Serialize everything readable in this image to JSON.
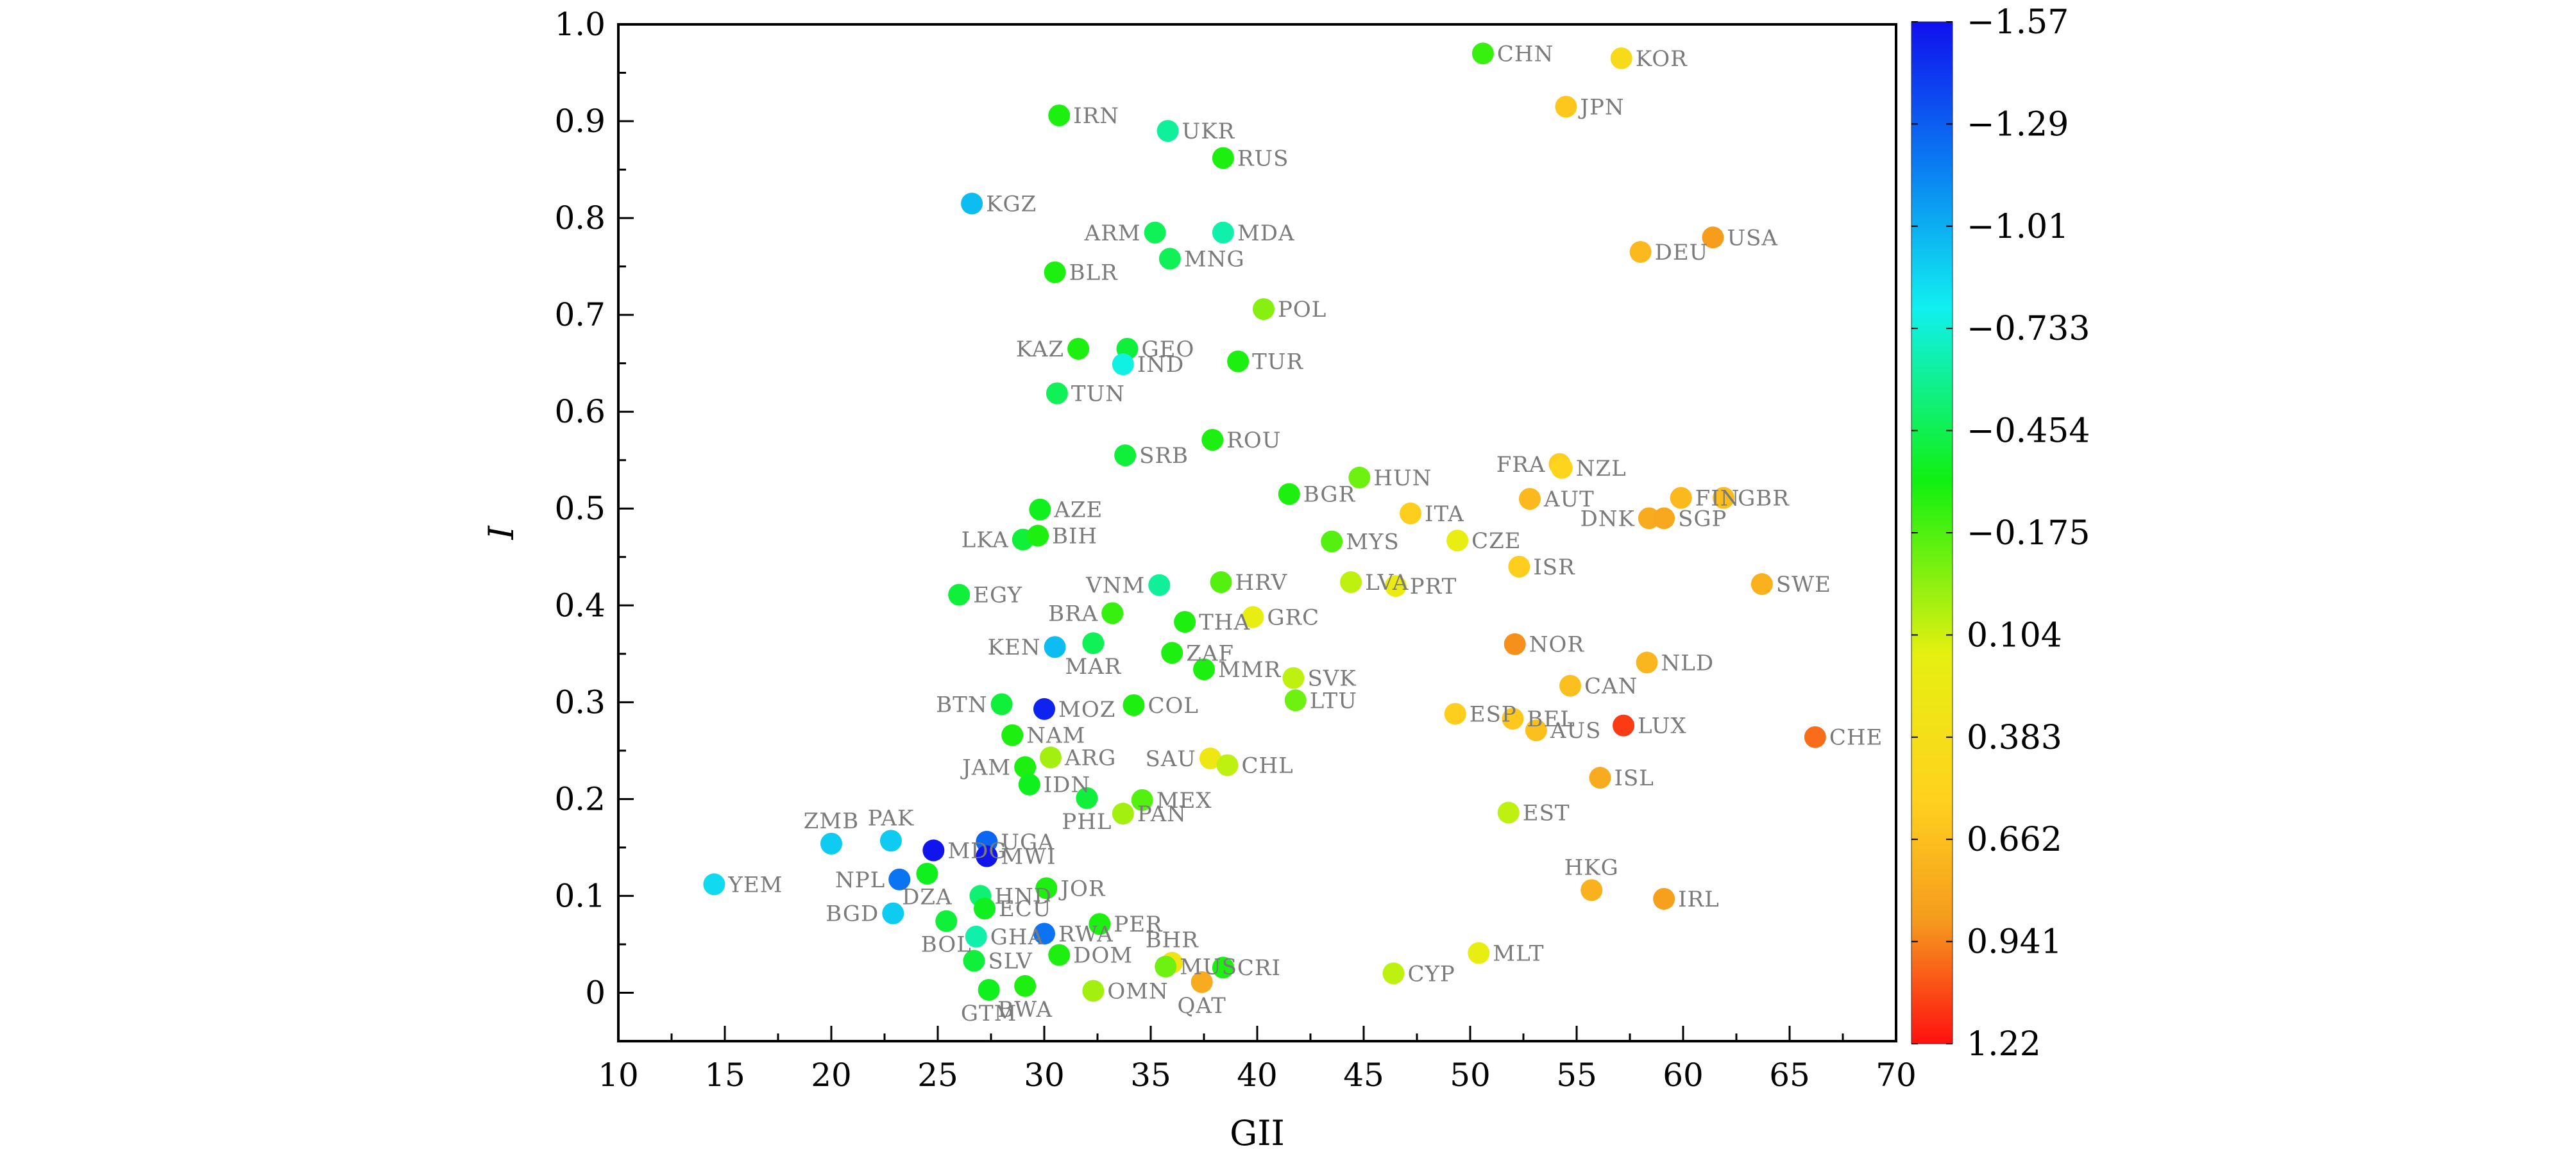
{
  "chart_data": {
    "type": "scatter",
    "title": "",
    "xlabel": "GII",
    "ylabel": "I",
    "xlim": [
      10,
      70
    ],
    "ylim": [
      -0.05,
      1.0
    ],
    "xticks": [
      "10",
      "15",
      "20",
      "25",
      "30",
      "35",
      "40",
      "45",
      "50",
      "55",
      "60",
      "65",
      "70"
    ],
    "yticks": [
      "0",
      "0.1",
      "0.2",
      "0.3",
      "0.4",
      "0.5",
      "0.6",
      "0.7",
      "0.8",
      "0.9",
      "1.0"
    ],
    "colorbar": {
      "range": [
        -1.57,
        1.22
      ],
      "ticks": [
        "−1.57",
        "−1.29",
        "−1.01",
        "−0.733",
        "−0.454",
        "−0.175",
        "0.104",
        "0.383",
        "0.662",
        "0.941",
        "1.22"
      ],
      "colors": [
        "#1010ee",
        "#0a7cf2",
        "#10f0f0",
        "#10f010",
        "#e6f010",
        "#ffd21e",
        "#f59a1e",
        "#ff1010"
      ]
    },
    "points": [
      {
        "label": "CHN",
        "x": 50.6,
        "y": 0.97,
        "c": -0.3,
        "side": "r"
      },
      {
        "label": "KOR",
        "x": 57.1,
        "y": 0.965,
        "c": 0.3,
        "side": "r"
      },
      {
        "label": "JPN",
        "x": 54.5,
        "y": 0.915,
        "c": 0.5,
        "side": "r"
      },
      {
        "label": "IRN",
        "x": 30.7,
        "y": 0.906,
        "c": -0.35,
        "side": "r"
      },
      {
        "label": "UKR",
        "x": 35.8,
        "y": 0.89,
        "c": -0.62,
        "side": "r"
      },
      {
        "label": "RUS",
        "x": 38.4,
        "y": 0.862,
        "c": -0.35,
        "side": "r"
      },
      {
        "label": "KGZ",
        "x": 26.6,
        "y": 0.815,
        "c": -0.95,
        "side": "r"
      },
      {
        "label": "ARM",
        "x": 35.2,
        "y": 0.785,
        "c": -0.5,
        "side": "l"
      },
      {
        "label": "MDA",
        "x": 38.4,
        "y": 0.785,
        "c": -0.65,
        "side": "r"
      },
      {
        "label": "USA",
        "x": 61.4,
        "y": 0.78,
        "c": 0.8,
        "side": "r"
      },
      {
        "label": "DEU",
        "x": 58.0,
        "y": 0.765,
        "c": 0.6,
        "side": "r"
      },
      {
        "label": "MNG",
        "x": 35.9,
        "y": 0.758,
        "c": -0.5,
        "side": "r"
      },
      {
        "label": "BLR",
        "x": 30.5,
        "y": 0.744,
        "c": -0.35,
        "side": "r"
      },
      {
        "label": "POL",
        "x": 40.3,
        "y": 0.706,
        "c": -0.15,
        "side": "r"
      },
      {
        "label": "KAZ",
        "x": 31.6,
        "y": 0.665,
        "c": -0.35,
        "side": "l"
      },
      {
        "label": "GEO",
        "x": 33.9,
        "y": 0.665,
        "c": -0.45,
        "side": "r"
      },
      {
        "label": "IND",
        "x": 33.7,
        "y": 0.649,
        "c": -0.75,
        "side": "r"
      },
      {
        "label": "TUR",
        "x": 39.1,
        "y": 0.652,
        "c": -0.35,
        "side": "r"
      },
      {
        "label": "TUN",
        "x": 30.6,
        "y": 0.619,
        "c": -0.5,
        "side": "r"
      },
      {
        "label": "ROU",
        "x": 37.9,
        "y": 0.571,
        "c": -0.35,
        "side": "r"
      },
      {
        "label": "SRB",
        "x": 33.8,
        "y": 0.555,
        "c": -0.45,
        "side": "r"
      },
      {
        "label": "FRA",
        "x": 54.2,
        "y": 0.546,
        "c": 0.45,
        "side": "l"
      },
      {
        "label": "NZL",
        "x": 54.3,
        "y": 0.542,
        "c": 0.4,
        "side": "r"
      },
      {
        "label": "HUN",
        "x": 44.8,
        "y": 0.532,
        "c": -0.2,
        "side": "r"
      },
      {
        "label": "BGR",
        "x": 41.5,
        "y": 0.515,
        "c": -0.35,
        "side": "r"
      },
      {
        "label": "AUT",
        "x": 52.8,
        "y": 0.51,
        "c": 0.6,
        "side": "r"
      },
      {
        "label": "FIN",
        "x": 59.9,
        "y": 0.511,
        "c": 0.6,
        "side": "r"
      },
      {
        "label": "GBR",
        "x": 61.9,
        "y": 0.511,
        "c": 0.58,
        "side": "r"
      },
      {
        "label": "AZE",
        "x": 29.8,
        "y": 0.499,
        "c": -0.4,
        "side": "r"
      },
      {
        "label": "ITA",
        "x": 47.2,
        "y": 0.495,
        "c": 0.45,
        "side": "r"
      },
      {
        "label": "DNK",
        "x": 58.4,
        "y": 0.49,
        "c": 0.7,
        "side": "l"
      },
      {
        "label": "SGP",
        "x": 59.1,
        "y": 0.49,
        "c": 0.72,
        "side": "r"
      },
      {
        "label": "LKA",
        "x": 29.0,
        "y": 0.468,
        "c": -0.45,
        "side": "l"
      },
      {
        "label": "BIH",
        "x": 29.7,
        "y": 0.472,
        "c": -0.35,
        "side": "r"
      },
      {
        "label": "MYS",
        "x": 43.5,
        "y": 0.466,
        "c": -0.25,
        "side": "r"
      },
      {
        "label": "CZE",
        "x": 49.4,
        "y": 0.467,
        "c": 0.05,
        "side": "r"
      },
      {
        "label": "ISR",
        "x": 52.3,
        "y": 0.44,
        "c": 0.45,
        "side": "r"
      },
      {
        "label": "VNM",
        "x": 35.4,
        "y": 0.421,
        "c": -0.62,
        "side": "l"
      },
      {
        "label": "HRV",
        "x": 38.3,
        "y": 0.424,
        "c": -0.25,
        "side": "r"
      },
      {
        "label": "LVA",
        "x": 44.4,
        "y": 0.424,
        "c": -0.05,
        "side": "r"
      },
      {
        "label": "PRT",
        "x": 46.5,
        "y": 0.42,
        "c": 0.1,
        "side": "r"
      },
      {
        "label": "SWE",
        "x": 63.7,
        "y": 0.422,
        "c": 0.65,
        "side": "r"
      },
      {
        "label": "EGY",
        "x": 26.0,
        "y": 0.411,
        "c": -0.45,
        "side": "r"
      },
      {
        "label": "BRA",
        "x": 33.2,
        "y": 0.392,
        "c": -0.3,
        "side": "l"
      },
      {
        "label": "GRC",
        "x": 39.8,
        "y": 0.388,
        "c": 0.05,
        "side": "r"
      },
      {
        "label": "THA",
        "x": 36.6,
        "y": 0.383,
        "c": -0.35,
        "side": "r"
      },
      {
        "label": "KEN",
        "x": 30.5,
        "y": 0.357,
        "c": -0.95,
        "side": "l"
      },
      {
        "label": "MAR",
        "x": 32.3,
        "y": 0.361,
        "c": -0.5,
        "side": "b"
      },
      {
        "label": "NOR",
        "x": 52.1,
        "y": 0.36,
        "c": 0.85,
        "side": "r"
      },
      {
        "label": "ZAF",
        "x": 36.0,
        "y": 0.351,
        "c": -0.35,
        "side": "r"
      },
      {
        "label": "NLD",
        "x": 58.3,
        "y": 0.341,
        "c": 0.62,
        "side": "r"
      },
      {
        "label": "MMR",
        "x": 37.5,
        "y": 0.334,
        "c": -0.35,
        "side": "r"
      },
      {
        "label": "SVK",
        "x": 41.7,
        "y": 0.325,
        "c": -0.05,
        "side": "r"
      },
      {
        "label": "CAN",
        "x": 54.7,
        "y": 0.317,
        "c": 0.55,
        "side": "r"
      },
      {
        "label": "LTU",
        "x": 41.8,
        "y": 0.302,
        "c": -0.2,
        "side": "r"
      },
      {
        "label": "BTN",
        "x": 28.0,
        "y": 0.298,
        "c": -0.45,
        "side": "l"
      },
      {
        "label": "MOZ",
        "x": 30.0,
        "y": 0.293,
        "c": -1.5,
        "side": "r"
      },
      {
        "label": "COL",
        "x": 34.2,
        "y": 0.297,
        "c": -0.35,
        "side": "r"
      },
      {
        "label": "ESP",
        "x": 49.3,
        "y": 0.288,
        "c": 0.45,
        "side": "r"
      },
      {
        "label": "BEL",
        "x": 52.0,
        "y": 0.283,
        "c": 0.5,
        "side": "r"
      },
      {
        "label": "LUX",
        "x": 57.2,
        "y": 0.276,
        "c": 1.1,
        "side": "r"
      },
      {
        "label": "AUS",
        "x": 53.1,
        "y": 0.271,
        "c": 0.55,
        "side": "r"
      },
      {
        "label": "CHE",
        "x": 66.2,
        "y": 0.264,
        "c": 0.95,
        "side": "r"
      },
      {
        "label": "NAM",
        "x": 28.5,
        "y": 0.266,
        "c": -0.35,
        "side": "r"
      },
      {
        "label": "ARG",
        "x": 30.3,
        "y": 0.243,
        "c": -0.1,
        "side": "r"
      },
      {
        "label": "SAU",
        "x": 37.8,
        "y": 0.242,
        "c": 0.15,
        "side": "l"
      },
      {
        "label": "CHL",
        "x": 38.6,
        "y": 0.235,
        "c": -0.05,
        "side": "r"
      },
      {
        "label": "JAM",
        "x": 29.1,
        "y": 0.233,
        "c": -0.35,
        "side": "l"
      },
      {
        "label": "ISL",
        "x": 56.1,
        "y": 0.222,
        "c": 0.7,
        "side": "r"
      },
      {
        "label": "IDN",
        "x": 29.3,
        "y": 0.215,
        "c": -0.4,
        "side": "r"
      },
      {
        "label": "PHL",
        "x": 32.0,
        "y": 0.201,
        "c": -0.45,
        "side": "b"
      },
      {
        "label": "MEX",
        "x": 34.6,
        "y": 0.199,
        "c": -0.25,
        "side": "r"
      },
      {
        "label": "PAN",
        "x": 33.7,
        "y": 0.185,
        "c": -0.1,
        "side": "r"
      },
      {
        "label": "EST",
        "x": 51.8,
        "y": 0.186,
        "c": -0.05,
        "side": "r"
      },
      {
        "label": "ZMB",
        "x": 20.0,
        "y": 0.154,
        "c": -0.9,
        "side": "t"
      },
      {
        "label": "PAK",
        "x": 22.8,
        "y": 0.157,
        "c": -0.9,
        "side": "t"
      },
      {
        "label": "MDG",
        "x": 24.8,
        "y": 0.147,
        "c": -1.55,
        "side": "r"
      },
      {
        "label": "UGA",
        "x": 27.3,
        "y": 0.156,
        "c": -1.25,
        "side": "r"
      },
      {
        "label": "MWI",
        "x": 27.3,
        "y": 0.141,
        "c": -1.55,
        "side": "r"
      },
      {
        "label": "YEM",
        "x": 14.5,
        "y": 0.112,
        "c": -0.85,
        "side": "r"
      },
      {
        "label": "NPL",
        "x": 23.2,
        "y": 0.117,
        "c": -1.2,
        "side": "l"
      },
      {
        "label": "DZA",
        "x": 24.5,
        "y": 0.123,
        "c": -0.4,
        "side": "b"
      },
      {
        "label": "HND",
        "x": 27.0,
        "y": 0.1,
        "c": -0.55,
        "side": "r"
      },
      {
        "label": "JOR",
        "x": 30.1,
        "y": 0.108,
        "c": -0.35,
        "side": "r"
      },
      {
        "label": "ECU",
        "x": 27.2,
        "y": 0.087,
        "c": -0.4,
        "side": "r"
      },
      {
        "label": "HKG",
        "x": 55.7,
        "y": 0.106,
        "c": 0.65,
        "side": "t"
      },
      {
        "label": "IRL",
        "x": 59.1,
        "y": 0.097,
        "c": 0.78,
        "side": "r"
      },
      {
        "label": "BGD",
        "x": 22.9,
        "y": 0.082,
        "c": -0.9,
        "side": "l"
      },
      {
        "label": "PER",
        "x": 32.6,
        "y": 0.071,
        "c": -0.35,
        "side": "r"
      },
      {
        "label": "BOL",
        "x": 25.4,
        "y": 0.074,
        "c": -0.45,
        "side": "b"
      },
      {
        "label": "GHA",
        "x": 26.8,
        "y": 0.058,
        "c": -0.65,
        "side": "r"
      },
      {
        "label": "RWA",
        "x": 30.0,
        "y": 0.061,
        "c": -1.2,
        "side": "r"
      },
      {
        "label": "MLT",
        "x": 50.4,
        "y": 0.041,
        "c": 0.05,
        "side": "r"
      },
      {
        "label": "DOM",
        "x": 30.7,
        "y": 0.039,
        "c": -0.35,
        "side": "r"
      },
      {
        "label": "SLV",
        "x": 26.7,
        "y": 0.033,
        "c": -0.45,
        "side": "r"
      },
      {
        "label": "BHR",
        "x": 36.0,
        "y": 0.031,
        "c": 0.2,
        "side": "t"
      },
      {
        "label": "MUS",
        "x": 35.7,
        "y": 0.027,
        "c": -0.2,
        "side": "r"
      },
      {
        "label": "CRI",
        "x": 38.4,
        "y": 0.026,
        "c": -0.35,
        "side": "r"
      },
      {
        "label": "CYP",
        "x": 46.4,
        "y": 0.02,
        "c": -0.05,
        "side": "r"
      },
      {
        "label": "QAT",
        "x": 37.4,
        "y": 0.011,
        "c": 0.7,
        "side": "b"
      },
      {
        "label": "GTM",
        "x": 27.4,
        "y": 0.003,
        "c": -0.4,
        "side": "b"
      },
      {
        "label": "BWA",
        "x": 29.1,
        "y": 0.007,
        "c": -0.35,
        "side": "b"
      },
      {
        "label": "OMN",
        "x": 32.3,
        "y": 0.002,
        "c": -0.1,
        "side": "r"
      }
    ]
  }
}
